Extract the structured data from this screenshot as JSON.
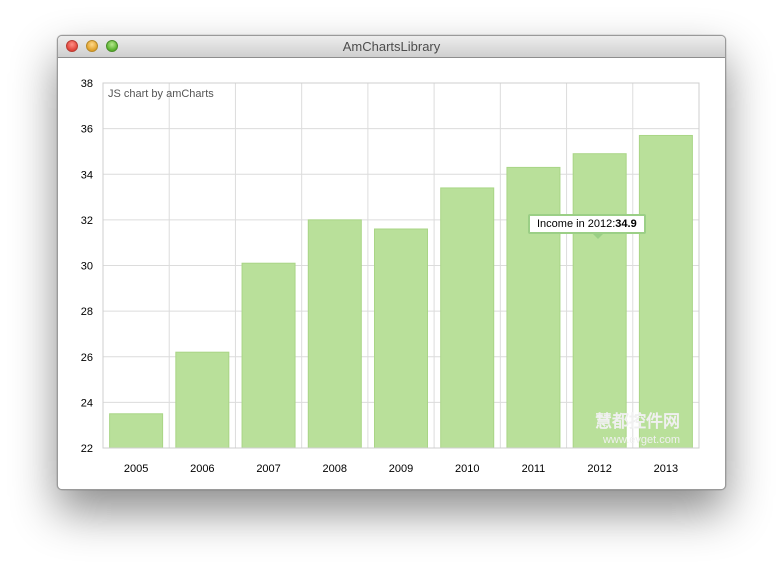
{
  "window": {
    "title": "AmChartsLibrary"
  },
  "credit": "JS chart by amCharts",
  "tooltip": {
    "prefix": "Income in 2012:",
    "value": "34.9"
  },
  "watermark": {
    "brand": "慧都控件网",
    "url": "www.evget.com"
  },
  "colors": {
    "bar_fill": "#b9e09a",
    "bar_stroke": "#a9d586",
    "grid": "#dcdcdc"
  },
  "chart_data": {
    "type": "bar",
    "categories": [
      "2005",
      "2006",
      "2007",
      "2008",
      "2009",
      "2010",
      "2011",
      "2012",
      "2013"
    ],
    "series": [
      {
        "name": "Income",
        "values": [
          23.5,
          26.2,
          30.1,
          32.0,
          31.6,
          33.4,
          34.3,
          34.9,
          35.7
        ]
      }
    ],
    "ylim": [
      22,
      38
    ],
    "yticks": [
      22,
      24,
      26,
      28,
      30,
      32,
      34,
      36,
      38
    ],
    "grid": true,
    "title": "",
    "xlabel": "",
    "ylabel": ""
  }
}
